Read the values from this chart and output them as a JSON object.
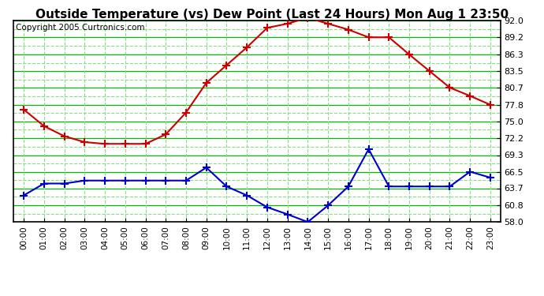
{
  "title": "Outside Temperature (vs) Dew Point (Last 24 Hours) Mon Aug 1 23:50",
  "copyright": "Copyright 2005 Curtronics.com",
  "x_labels": [
    "00:00",
    "01:00",
    "02:00",
    "03:00",
    "04:00",
    "05:00",
    "06:00",
    "07:00",
    "08:00",
    "09:00",
    "10:00",
    "11:00",
    "12:00",
    "13:00",
    "14:00",
    "15:00",
    "16:00",
    "17:00",
    "18:00",
    "19:00",
    "20:00",
    "21:00",
    "22:00",
    "23:00"
  ],
  "temp_data": [
    77.0,
    74.2,
    72.5,
    71.5,
    71.2,
    71.2,
    71.2,
    72.8,
    76.5,
    81.5,
    84.5,
    87.5,
    90.8,
    91.5,
    92.5,
    91.5,
    90.5,
    89.2,
    89.2,
    86.3,
    83.5,
    80.7,
    79.3,
    77.8
  ],
  "dew_data": [
    62.5,
    64.5,
    64.5,
    65.0,
    65.0,
    65.0,
    65.0,
    65.0,
    65.0,
    67.2,
    64.0,
    62.5,
    60.5,
    59.3,
    58.0,
    60.8,
    64.0,
    70.3,
    64.0,
    64.0,
    64.0,
    64.0,
    66.5,
    65.5
  ],
  "temp_color": "#cc0000",
  "dew_color": "#0000cc",
  "bg_color": "#ffffff",
  "major_grid_color": "#00bb00",
  "minor_grid_color": "#88dd88",
  "y_min": 58.0,
  "y_max": 92.0,
  "y_ticks": [
    58.0,
    60.8,
    63.7,
    66.5,
    69.3,
    72.2,
    75.0,
    77.8,
    80.7,
    83.5,
    86.3,
    89.2,
    92.0
  ],
  "title_fontsize": 11,
  "copyright_fontsize": 7.5
}
